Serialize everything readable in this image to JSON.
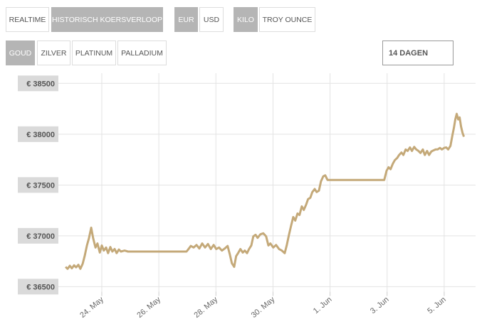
{
  "controls": {
    "row1": [
      {
        "label": "REALTIME",
        "on": false
      },
      {
        "label": "HISTORISCH KOERSVERLOOP",
        "on": true
      },
      {
        "label": "EUR",
        "on": true
      },
      {
        "label": "USD",
        "on": false
      },
      {
        "label": "KILO",
        "on": true
      },
      {
        "label": "TROY OUNCE",
        "on": false
      }
    ],
    "row2": [
      {
        "label": "GOUD",
        "on": true
      },
      {
        "label": "ZILVER",
        "on": false
      },
      {
        "label": "PLATINUM",
        "on": false
      },
      {
        "label": "PALLADIUM",
        "on": false
      }
    ],
    "period": "14 DAGEN"
  },
  "chart_data": {
    "type": "line",
    "color": "#c4a979",
    "grid": true,
    "xlim": [
      22,
      37.1
    ],
    "ylim": [
      36450,
      38600
    ],
    "xticks": [
      {
        "value": 24,
        "label": "24. May"
      },
      {
        "value": 26,
        "label": "26. May"
      },
      {
        "value": 28,
        "label": "28. May"
      },
      {
        "value": 30,
        "label": "30. May"
      },
      {
        "value": 32,
        "label": "1. Jun"
      },
      {
        "value": 34,
        "label": "3. Jun"
      },
      {
        "value": 36,
        "label": "5. Jun"
      }
    ],
    "yticks": [
      {
        "value": 36500,
        "label": "€ 36500"
      },
      {
        "value": 37000,
        "label": "€ 37000"
      },
      {
        "value": 37500,
        "label": "€ 37500"
      },
      {
        "value": 38000,
        "label": "€ 38000"
      },
      {
        "value": 38500,
        "label": "€ 38500"
      }
    ],
    "x": [
      22.73,
      22.8,
      22.88,
      22.95,
      23.03,
      23.1,
      23.18,
      23.25,
      23.33,
      23.4,
      23.48,
      23.55,
      23.63,
      23.7,
      23.78,
      23.85,
      23.93,
      24.0,
      24.07,
      24.15,
      24.22,
      24.3,
      24.37,
      24.45,
      24.52,
      24.6,
      24.67,
      24.8,
      24.92,
      26.97,
      27.04,
      27.12,
      27.22,
      27.32,
      27.42,
      27.52,
      27.62,
      27.72,
      27.82,
      27.92,
      28.01,
      28.11,
      28.21,
      28.31,
      28.41,
      28.49,
      28.56,
      28.64,
      28.71,
      28.79,
      28.86,
      28.94,
      29.01,
      29.09,
      29.16,
      29.24,
      29.31,
      29.39,
      29.46,
      29.56,
      29.66,
      29.76,
      29.84,
      29.91,
      30.01,
      30.11,
      30.21,
      30.31,
      30.41,
      30.48,
      30.56,
      30.63,
      30.71,
      30.78,
      30.86,
      30.93,
      31.01,
      31.08,
      31.16,
      31.23,
      31.31,
      31.38,
      31.46,
      31.53,
      31.61,
      31.68,
      31.76,
      31.83,
      31.91,
      32.16,
      33.9,
      33.98,
      34.05,
      34.12,
      34.2,
      34.27,
      34.35,
      34.42,
      34.5,
      34.57,
      34.65,
      34.72,
      34.8,
      34.87,
      34.95,
      35.02,
      35.1,
      35.17,
      35.25,
      35.32,
      35.4,
      35.47,
      35.55,
      35.62,
      35.7,
      35.77,
      35.85,
      35.92,
      36.0,
      36.07,
      36.14,
      36.22,
      36.29,
      36.34,
      36.39,
      36.44,
      36.49,
      36.54,
      36.59,
      36.64,
      36.69
    ],
    "values": [
      36695,
      36675,
      36705,
      36680,
      36710,
      36690,
      36715,
      36675,
      36725,
      36800,
      36905,
      36975,
      37080,
      36975,
      36885,
      36925,
      36835,
      36905,
      36855,
      36885,
      36830,
      36890,
      36845,
      36870,
      36830,
      36865,
      36845,
      36855,
      36845,
      36845,
      36870,
      36900,
      36885,
      36910,
      36875,
      36925,
      36885,
      36920,
      36870,
      36910,
      36870,
      36885,
      36855,
      36875,
      36900,
      36815,
      36730,
      36695,
      36800,
      36835,
      36870,
      36835,
      36855,
      36830,
      36870,
      36905,
      36995,
      37010,
      36980,
      37015,
      37025,
      36995,
      36905,
      36925,
      36885,
      36910,
      36870,
      36855,
      36830,
      36905,
      37010,
      37095,
      37185,
      37150,
      37220,
      37205,
      37290,
      37255,
      37305,
      37360,
      37375,
      37430,
      37460,
      37430,
      37445,
      37535,
      37585,
      37595,
      37550,
      37550,
      37550,
      37640,
      37675,
      37655,
      37710,
      37745,
      37765,
      37795,
      37820,
      37795,
      37850,
      37835,
      37870,
      37835,
      37875,
      37850,
      37835,
      37815,
      37850,
      37795,
      37835,
      37795,
      37830,
      37840,
      37850,
      37850,
      37865,
      37850,
      37865,
      37870,
      37850,
      37885,
      37990,
      38060,
      38145,
      38200,
      38145,
      38165,
      38075,
      38015,
      37975
    ]
  }
}
